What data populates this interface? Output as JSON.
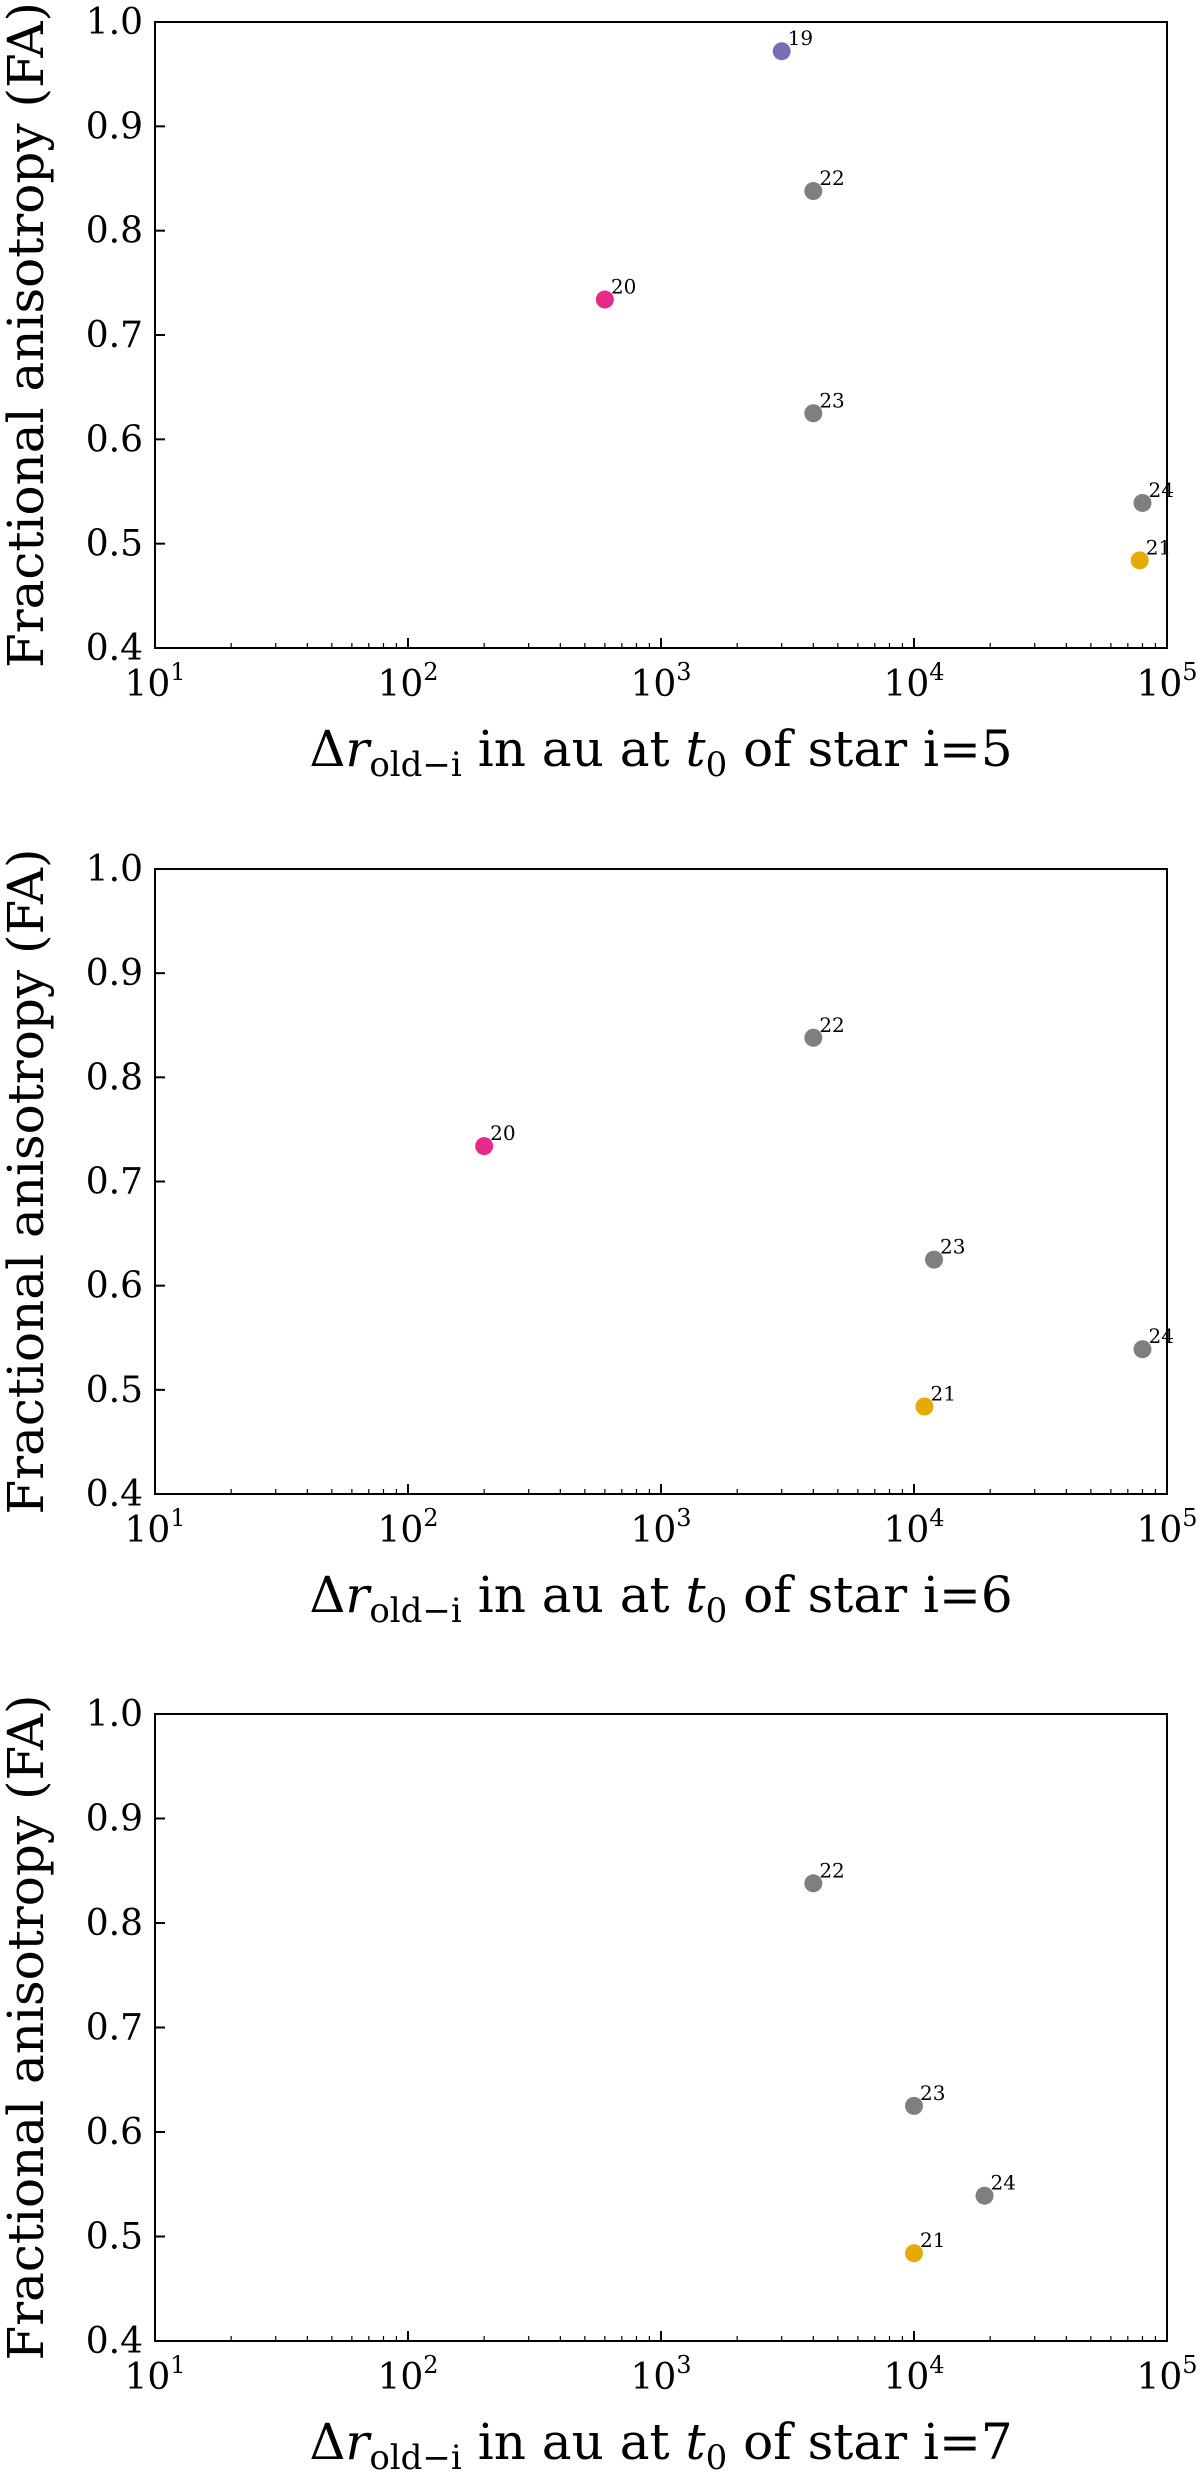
{
  "colors": {
    "gray": "#7f7f7f",
    "magenta": "#e7298a",
    "orange": "#e6ab02",
    "purple": "#7570b3"
  },
  "chart_data": [
    {
      "type": "scatter",
      "xscale": "log",
      "xlim": [
        10,
        100000
      ],
      "ylim": [
        0.4,
        1.0
      ],
      "grid": false,
      "xticks": [
        "10^1",
        "10^2",
        "10^3",
        "10^4",
        "10^5"
      ],
      "yticks": [
        "0.4",
        "0.5",
        "0.6",
        "0.7",
        "0.8",
        "0.9",
        "1.0"
      ],
      "ylabel": "Fractional anisotropy (FA)",
      "xlabel": {
        "delta": "Δ",
        "r": "r",
        "sub": "old−i",
        "mid": " in au at ",
        "t": "t",
        "t_sub": "0",
        "tail": " of star i=5"
      },
      "points": [
        {
          "label": "19",
          "x": 3000,
          "y": 0.972,
          "color": "#7570b3"
        },
        {
          "label": "22",
          "x": 4000,
          "y": 0.838,
          "color": "#7f7f7f"
        },
        {
          "label": "20",
          "x": 600,
          "y": 0.734,
          "color": "#e7298a"
        },
        {
          "label": "23",
          "x": 4000,
          "y": 0.625,
          "color": "#7f7f7f"
        },
        {
          "label": "24",
          "x": 80000,
          "y": 0.539,
          "color": "#7f7f7f"
        },
        {
          "label": "21",
          "x": 78000,
          "y": 0.484,
          "color": "#e6ab02"
        }
      ]
    },
    {
      "type": "scatter",
      "xscale": "log",
      "xlim": [
        10,
        100000
      ],
      "ylim": [
        0.4,
        1.0
      ],
      "grid": false,
      "xticks": [
        "10^1",
        "10^2",
        "10^3",
        "10^4",
        "10^5"
      ],
      "yticks": [
        "0.4",
        "0.5",
        "0.6",
        "0.7",
        "0.8",
        "0.9",
        "1.0"
      ],
      "ylabel": "Fractional anisotropy (FA)",
      "xlabel": {
        "delta": "Δ",
        "r": "r",
        "sub": "old−i",
        "mid": " in au at ",
        "t": "t",
        "t_sub": "0",
        "tail": " of star i=6"
      },
      "points": [
        {
          "label": "22",
          "x": 4000,
          "y": 0.838,
          "color": "#7f7f7f"
        },
        {
          "label": "20",
          "x": 200,
          "y": 0.734,
          "color": "#e7298a"
        },
        {
          "label": "23",
          "x": 12000,
          "y": 0.625,
          "color": "#7f7f7f"
        },
        {
          "label": "24",
          "x": 80000,
          "y": 0.539,
          "color": "#7f7f7f"
        },
        {
          "label": "21",
          "x": 11000,
          "y": 0.484,
          "color": "#e6ab02"
        }
      ]
    },
    {
      "type": "scatter",
      "xscale": "log",
      "xlim": [
        10,
        100000
      ],
      "ylim": [
        0.4,
        1.0
      ],
      "grid": false,
      "xticks": [
        "10^1",
        "10^2",
        "10^3",
        "10^4",
        "10^5"
      ],
      "yticks": [
        "0.4",
        "0.5",
        "0.6",
        "0.7",
        "0.8",
        "0.9",
        "1.0"
      ],
      "ylabel": "Fractional anisotropy (FA)",
      "xlabel": {
        "delta": "Δ",
        "r": "r",
        "sub": "old−i",
        "mid": " in au at ",
        "t": "t",
        "t_sub": "0",
        "tail": " of star i=7"
      },
      "points": [
        {
          "label": "22",
          "x": 4000,
          "y": 0.838,
          "color": "#7f7f7f"
        },
        {
          "label": "23",
          "x": 10000,
          "y": 0.625,
          "color": "#7f7f7f"
        },
        {
          "label": "24",
          "x": 19000,
          "y": 0.539,
          "color": "#7f7f7f"
        },
        {
          "label": "21",
          "x": 10000,
          "y": 0.484,
          "color": "#e6ab02"
        }
      ]
    }
  ]
}
